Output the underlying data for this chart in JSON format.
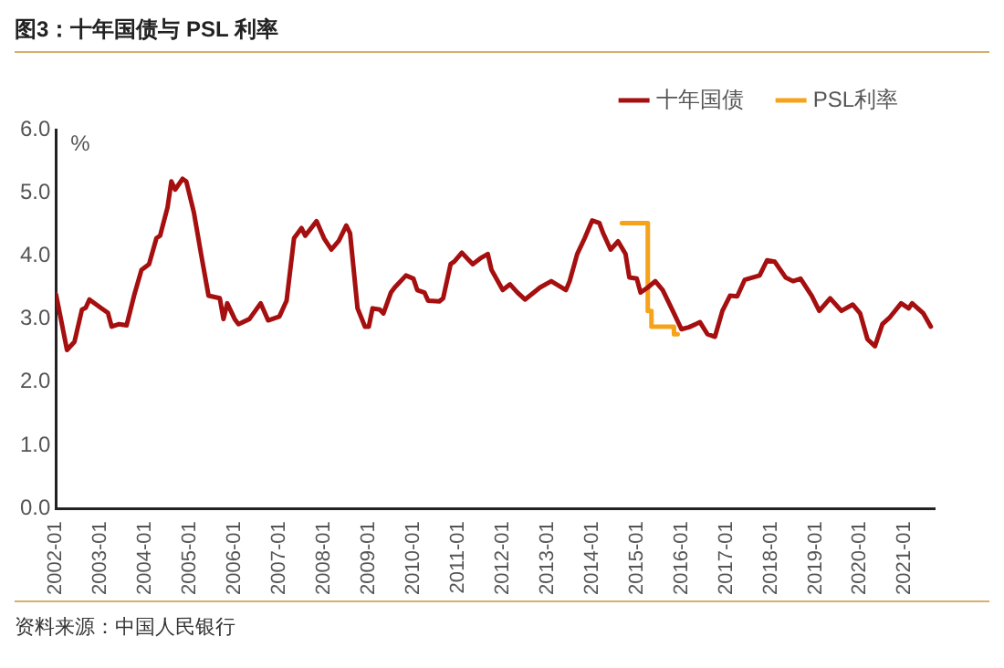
{
  "chart_data": {
    "type": "line",
    "title": "图3：十年国债与 PSL 利率",
    "ylabel": "%",
    "annotations": [
      "资料来源：中国人民银行"
    ],
    "xlim": [
      "2002-01",
      "2021-09"
    ],
    "xticks": [
      "2002-01",
      "2003-01",
      "2004-01",
      "2005-01",
      "2006-01",
      "2007-01",
      "2008-01",
      "2009-01",
      "2010-01",
      "2011-01",
      "2012-01",
      "2013-01",
      "2014-01",
      "2015-01",
      "2016-01",
      "2017-01",
      "2018-01",
      "2019-01",
      "2020-01",
      "2021-01"
    ],
    "ylim": [
      0,
      6
    ],
    "yticks": [
      {
        "value": 0,
        "label": "0.0"
      },
      {
        "value": 1,
        "label": "1.0"
      },
      {
        "value": 2,
        "label": "2.0"
      },
      {
        "value": 3,
        "label": "3.0"
      },
      {
        "value": 4,
        "label": "4.0"
      },
      {
        "value": 5,
        "label": "5.0"
      },
      {
        "value": 6,
        "label": "6.0"
      }
    ],
    "grid": false,
    "legend": "top right",
    "marker": "none",
    "line_style": "solid",
    "series": [
      {
        "name": "十年国债",
        "color": "#a50f0f",
        "x": [
          "2002-01",
          "2002-02",
          "2002-04",
          "2002-06",
          "2002-08",
          "2002-09",
          "2002-10",
          "2003-01",
          "2003-03",
          "2003-04",
          "2003-06",
          "2003-08",
          "2003-10",
          "2003-12",
          "2004-02",
          "2004-04",
          "2004-05",
          "2004-07",
          "2004-08",
          "2004-09",
          "2004-11",
          "2004-12",
          "2005-02",
          "2005-04",
          "2005-06",
          "2005-09",
          "2005-10",
          "2005-11",
          "2006-01",
          "2006-02",
          "2006-05",
          "2006-08",
          "2006-10",
          "2007-01",
          "2007-03",
          "2007-05",
          "2007-07",
          "2007-08",
          "2007-11",
          "2008-01",
          "2008-03",
          "2008-05",
          "2008-07",
          "2008-08",
          "2008-10",
          "2008-12",
          "2009-01",
          "2009-02",
          "2009-04",
          "2009-05",
          "2009-07",
          "2009-08",
          "2009-11",
          "2010-01",
          "2010-02",
          "2010-04",
          "2010-05",
          "2010-08",
          "2010-09",
          "2010-11",
          "2010-12",
          "2011-02",
          "2011-05",
          "2011-07",
          "2011-09",
          "2011-10",
          "2012-01",
          "2012-03",
          "2012-05",
          "2012-07",
          "2012-11",
          "2013-02",
          "2013-06",
          "2013-07",
          "2013-09",
          "2013-11",
          "2014-01",
          "2014-03",
          "2014-04",
          "2014-06",
          "2014-08",
          "2014-10",
          "2014-11",
          "2015-01",
          "2015-02",
          "2015-04",
          "2015-06",
          "2015-08",
          "2015-11",
          "2016-01",
          "2016-03",
          "2016-06",
          "2016-08",
          "2016-10",
          "2016-12",
          "2017-02",
          "2017-04",
          "2017-06",
          "2017-10",
          "2017-12",
          "2018-02",
          "2018-05",
          "2018-07",
          "2018-09",
          "2018-12",
          "2019-02",
          "2019-05",
          "2019-08",
          "2019-11",
          "2020-01",
          "2020-03",
          "2020-05",
          "2020-07",
          "2020-09",
          "2020-12",
          "2021-02",
          "2021-03",
          "2021-06",
          "2021-08"
        ],
        "values": [
          3.39,
          3.09,
          2.51,
          2.64,
          3.15,
          3.18,
          3.31,
          3.18,
          3.1,
          2.88,
          2.92,
          2.9,
          3.37,
          3.78,
          3.87,
          4.28,
          4.32,
          4.77,
          5.18,
          5.05,
          5.22,
          5.18,
          4.69,
          4.03,
          3.37,
          3.33,
          3.0,
          3.25,
          3.0,
          2.92,
          3.0,
          3.25,
          2.98,
          3.04,
          3.29,
          4.28,
          4.44,
          4.32,
          4.55,
          4.28,
          4.1,
          4.24,
          4.48,
          4.36,
          3.17,
          2.88,
          2.88,
          3.17,
          3.15,
          3.09,
          3.42,
          3.5,
          3.69,
          3.64,
          3.46,
          3.42,
          3.29,
          3.28,
          3.33,
          3.87,
          3.91,
          4.05,
          3.87,
          3.96,
          4.03,
          3.78,
          3.46,
          3.55,
          3.42,
          3.31,
          3.5,
          3.6,
          3.46,
          3.6,
          4.03,
          4.28,
          4.56,
          4.52,
          4.36,
          4.1,
          4.23,
          4.03,
          3.66,
          3.64,
          3.42,
          3.5,
          3.6,
          3.46,
          3.09,
          2.84,
          2.87,
          2.95,
          2.76,
          2.72,
          3.13,
          3.37,
          3.36,
          3.62,
          3.69,
          3.93,
          3.91,
          3.66,
          3.6,
          3.64,
          3.37,
          3.13,
          3.33,
          3.13,
          3.23,
          3.09,
          2.68,
          2.57,
          2.92,
          3.03,
          3.25,
          3.17,
          3.25,
          3.09,
          2.88
        ]
      },
      {
        "name": "PSL利率",
        "type": "step",
        "color": "#f5a31a",
        "x": [
          "2014-09",
          "2015-04",
          "2015-05",
          "2015-07",
          "2015-11",
          "2015-12"
        ],
        "values": [
          4.52,
          4.52,
          3.13,
          2.88,
          2.88,
          2.76
        ]
      }
    ]
  }
}
